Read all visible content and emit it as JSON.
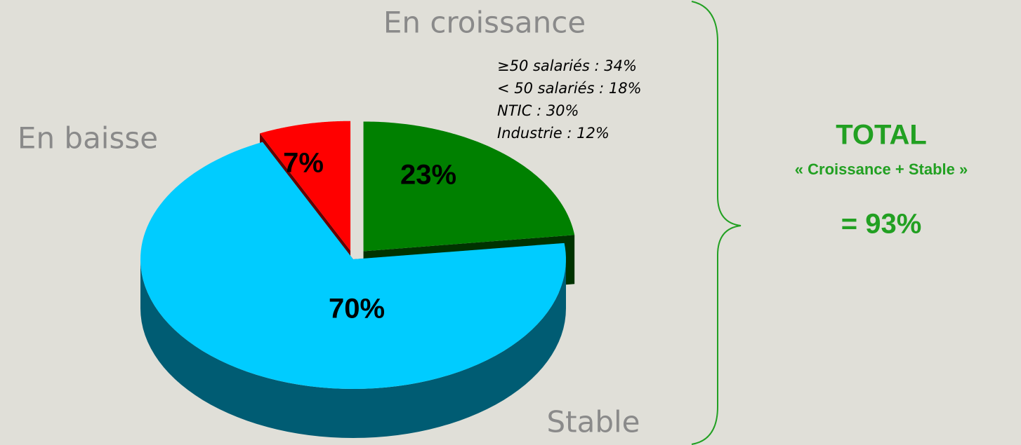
{
  "chart_data": {
    "type": "pie",
    "categories": [
      "En croissance",
      "Stable",
      "En baisse"
    ],
    "values": [
      23,
      70,
      7
    ],
    "value_labels": [
      "23%",
      "70%",
      "7%"
    ],
    "colors": [
      "#008000",
      "#00ccff",
      "#ff0000"
    ],
    "annotations": [
      "≥50 salariés : 34%",
      "< 50 salariés : 18%",
      "NTIC : 30%",
      "Industrie : 12%"
    ],
    "total": {
      "title": "TOTAL",
      "subtitle": "« Croissance + Stable »",
      "value": "= 93%"
    }
  }
}
